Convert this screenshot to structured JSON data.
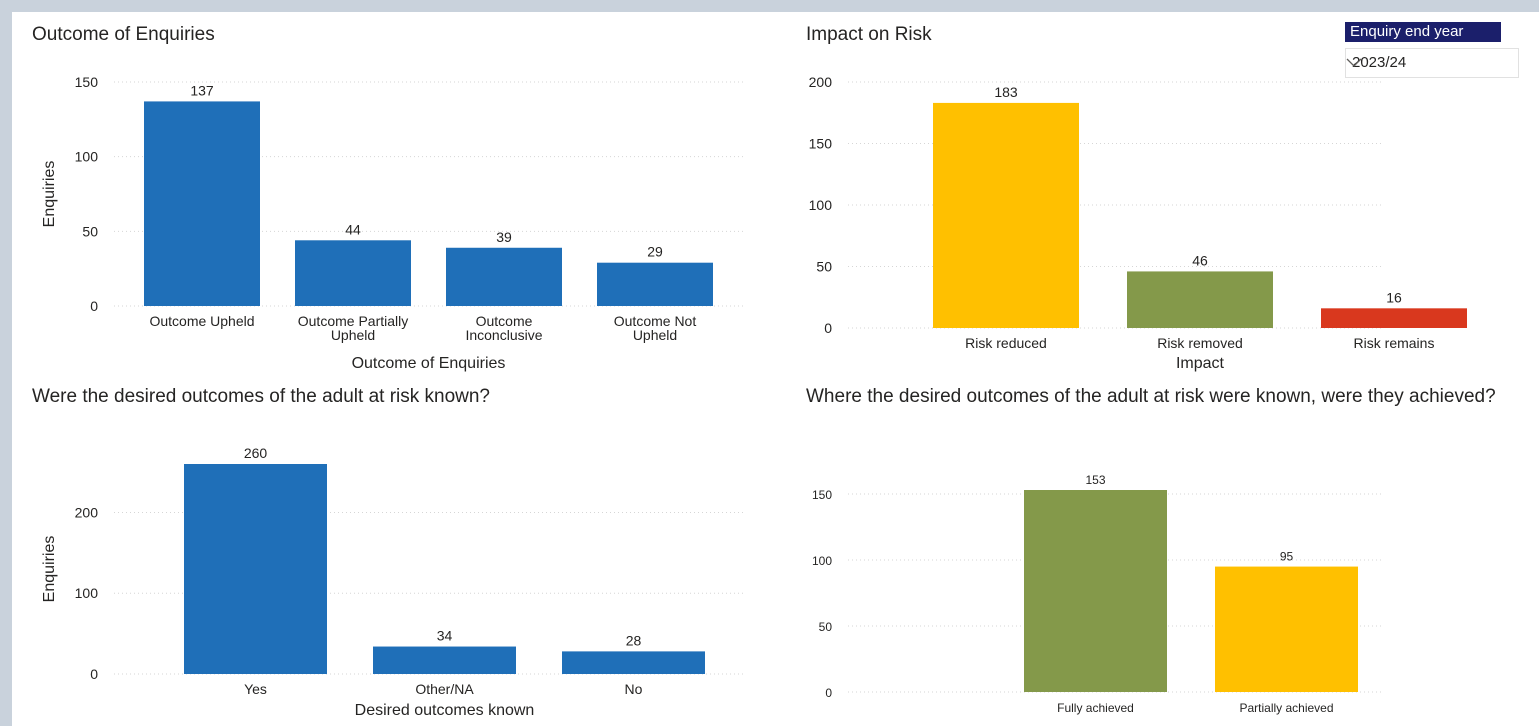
{
  "slicer": {
    "title": "Enquiry end year",
    "selected": "2023/24",
    "icon": "chevron-down-icon"
  },
  "charts": {
    "outcome": {
      "title": "Outcome of Enquiries",
      "chart_data": {
        "type": "bar",
        "categories": [
          [
            "Outcome Upheld"
          ],
          [
            "Outcome Partially",
            "Upheld"
          ],
          [
            "Outcome",
            "Inconclusive"
          ],
          [
            "Outcome Not",
            "Upheld"
          ]
        ],
        "values": [
          137,
          44,
          39,
          29
        ],
        "colors": [
          "#1f6fb8",
          "#1f6fb8",
          "#1f6fb8",
          "#1f6fb8"
        ],
        "xlabel": "Outcome of Enquiries",
        "ylabel": "Enquiries",
        "ylim": [
          0,
          150
        ],
        "yticks": [
          0,
          50,
          100,
          150
        ],
        "grid": true
      }
    },
    "risk": {
      "title": "Impact on Risk",
      "chart_data": {
        "type": "bar",
        "categories": [
          [
            "Risk reduced"
          ],
          [
            "Risk removed"
          ],
          [
            "Risk remains"
          ]
        ],
        "values": [
          183,
          46,
          16
        ],
        "colors": [
          "#ffc000",
          "#84994a",
          "#d9381e"
        ],
        "xlabel": "Impact",
        "ylabel": "",
        "ylim": [
          0,
          200
        ],
        "yticks": [
          0,
          50,
          100,
          150,
          200
        ],
        "grid": true
      }
    },
    "known": {
      "title": "Were the desired outcomes of the adult at risk known?",
      "chart_data": {
        "type": "bar",
        "categories": [
          [
            "Yes"
          ],
          [
            "Other/NA"
          ],
          [
            "No"
          ]
        ],
        "values": [
          260,
          34,
          28
        ],
        "colors": [
          "#1f6fb8",
          "#1f6fb8",
          "#1f6fb8"
        ],
        "xlabel": "Desired outcomes known",
        "ylabel": "Enquiries",
        "ylim": [
          0,
          260
        ],
        "yticks": [
          0,
          100,
          200
        ],
        "grid": true
      }
    },
    "achieved": {
      "title": "Where the desired outcomes of the adult at risk were known, were they achieved?",
      "chart_data": {
        "type": "bar",
        "categories": [
          [
            "Fully achieved"
          ],
          [
            "Partially achieved"
          ]
        ],
        "values": [
          153,
          95
        ],
        "colors": [
          "#84994a",
          "#ffc000"
        ],
        "xlabel": "",
        "ylabel": "",
        "ylim": [
          0,
          153
        ],
        "yticks": [
          0,
          50,
          100,
          150
        ],
        "grid": true
      }
    }
  }
}
